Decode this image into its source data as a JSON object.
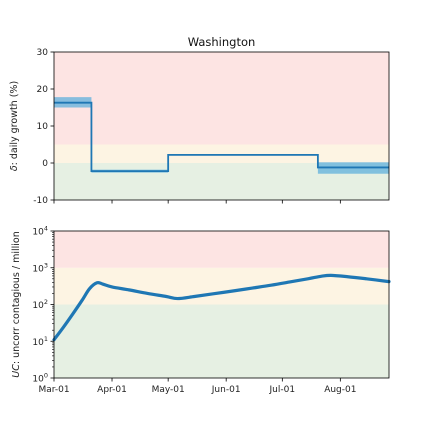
{
  "chart_data": [
    {
      "type": "line",
      "title": "Washington",
      "ylabel_prefix": "δ",
      "ylabel_suffix": ": daily growth (%)",
      "ylim": [
        -10,
        30
      ],
      "yticks": [
        -10,
        0,
        10,
        20,
        30
      ],
      "xlim": [
        "2020-03-01",
        "2020-08-27"
      ],
      "bands": [
        {
          "from": -10,
          "to": 0,
          "color": "#e6f0e3"
        },
        {
          "from": 0,
          "to": 5,
          "color": "#fdf4e3"
        },
        {
          "from": 5,
          "to": 30,
          "color": "#fde4e3"
        }
      ],
      "steps": [
        {
          "start": "2020-03-01",
          "end": "2020-03-21",
          "value": 16.3,
          "lower": 15.0,
          "upper": 17.8
        },
        {
          "start": "2020-03-21",
          "end": "2020-05-01",
          "value": -2.2,
          "lower": -2.6,
          "upper": -1.8
        },
        {
          "start": "2020-05-01",
          "end": "2020-07-20",
          "value": 2.2,
          "lower": 2.0,
          "upper": 2.4
        },
        {
          "start": "2020-07-20",
          "end": "2020-08-27",
          "value": -1.2,
          "lower": -2.9,
          "upper": 0.2
        }
      ],
      "line_color": "#1f77b4",
      "band_color": "#5fb0dc"
    },
    {
      "type": "line",
      "ylabel_prefix": "UC",
      "ylabel_suffix": ": uncorr contagious / million",
      "yscale": "log",
      "ylim": [
        1,
        10000
      ],
      "yticks": [
        {
          "base": "10",
          "exp": "0",
          "value": 1
        },
        {
          "base": "10",
          "exp": "1",
          "value": 10
        },
        {
          "base": "10",
          "exp": "2",
          "value": 100
        },
        {
          "base": "10",
          "exp": "3",
          "value": 1000
        },
        {
          "base": "10",
          "exp": "4",
          "value": 10000
        }
      ],
      "xlim": [
        "2020-03-01",
        "2020-08-27"
      ],
      "xticks": [
        {
          "label": "Mar-01",
          "date": "2020-03-01"
        },
        {
          "label": "Apr-01",
          "date": "2020-04-01"
        },
        {
          "label": "May-01",
          "date": "2020-05-01"
        },
        {
          "label": "Jun-01",
          "date": "2020-06-01"
        },
        {
          "label": "Jul-01",
          "date": "2020-07-01"
        },
        {
          "label": "Aug-01",
          "date": "2020-08-01"
        }
      ],
      "bands": [
        {
          "from": 1,
          "to": 100,
          "color": "#e6f0e3"
        },
        {
          "from": 100,
          "to": 1000,
          "color": "#fdf4e3"
        },
        {
          "from": 1000,
          "to": 10000,
          "color": "#fde4e3"
        }
      ],
      "series": [
        {
          "x": [
            "2020-03-01",
            "2020-03-06",
            "2020-03-11",
            "2020-03-16",
            "2020-03-20",
            "2020-03-24",
            "2020-03-27",
            "2020-04-01",
            "2020-04-10",
            "2020-04-20",
            "2020-04-30",
            "2020-05-06",
            "2020-05-15",
            "2020-05-25",
            "2020-06-05",
            "2020-06-15",
            "2020-06-25",
            "2020-07-05",
            "2020-07-15",
            "2020-07-22",
            "2020-07-27",
            "2020-08-05",
            "2020-08-15",
            "2020-08-27"
          ],
          "values": [
            11,
            24,
            55,
            130,
            270,
            390,
            360,
            300,
            250,
            200,
            165,
            145,
            165,
            195,
            235,
            280,
            335,
            410,
            505,
            590,
            620,
            570,
            500,
            420
          ]
        }
      ],
      "line_color": "#1f77b4"
    }
  ]
}
